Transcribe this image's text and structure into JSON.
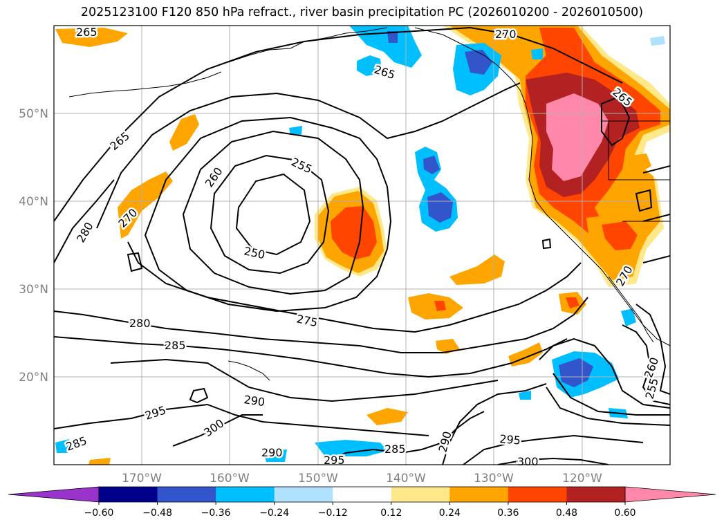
{
  "title": "2025123100 F120 850 hPa refract., river basin precipitation PC (2026010200 - 2026010500)",
  "latitude_labels": [
    "50°N",
    "40°N",
    "30°N",
    "20°N"
  ],
  "longitude_labels": [
    "170°W",
    "160°W",
    "150°W",
    "140°W",
    "130°W",
    "120°W"
  ],
  "colorbar": {
    "ticks": [
      "−0.60",
      "−0.48",
      "−0.36",
      "−0.24",
      "−0.12",
      "0.12",
      "0.24",
      "0.36",
      "0.48",
      "0.60"
    ],
    "colors": [
      "#9933cc",
      "#00008b",
      "#3355cc",
      "#00bfff",
      "#b0e2ff",
      "#ffffff",
      "#ffe88a",
      "#ffa500",
      "#ff4500",
      "#b22222",
      "#ff88aa",
      "#ff88aa"
    ]
  },
  "contour_labels": {
    "c265_top": "265",
    "c270_top": "270",
    "c265_mid": "265",
    "c265_right": "265",
    "c265_left": "265",
    "c260": "260",
    "c255": "255",
    "c250": "250",
    "c270_left": "270",
    "c280_left": "280",
    "c280_mid": "280",
    "c275": "275",
    "c285_mid": "285",
    "c290_mid": "290",
    "c295_left": "295",
    "c300_left": "300",
    "c285_left": "285",
    "c290_bottom": "290",
    "c295_bottom": "295",
    "c285_bottom": "285",
    "c290_right": "290",
    "c295_right": "295",
    "c300_right": "300",
    "c260_right": "260",
    "c255_right": "255",
    "c270_ne": "270"
  }
}
